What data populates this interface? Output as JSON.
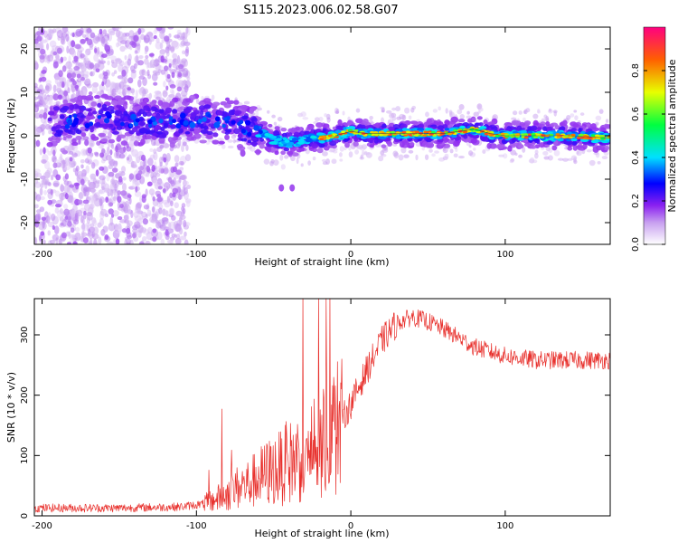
{
  "figure": {
    "title": "S115.2023.006.02.58.G07"
  },
  "chart_data": [
    {
      "type": "heatmap",
      "xlabel": "Height of straight line (km)",
      "ylabel": "Frequency (Hz)",
      "xlim": [
        -205,
        168
      ],
      "ylim": [
        -25,
        25
      ],
      "xticks": [
        -200,
        -100,
        0,
        100
      ],
      "yticks": [
        -20,
        -10,
        0,
        10,
        20
      ],
      "colorbar": {
        "label": "Normalized spectral amplitude",
        "range": [
          0,
          1
        ],
        "ticks": [
          "0.0",
          "0.2",
          "0.4",
          "0.6",
          "0.8"
        ],
        "colormap": [
          "#ffffff",
          "#c8a0f0",
          "#8a20f0",
          "#0000ff",
          "#00e0ff",
          "#00ff40",
          "#e8ff00",
          "#ff6000",
          "#ff0080"
        ]
      },
      "ridge": {
        "height_km": [
          -200,
          -180,
          -160,
          -140,
          -120,
          -100,
          -80,
          -60,
          -50,
          -40,
          -30,
          -20,
          -10,
          0,
          10,
          20,
          40,
          60,
          70,
          80,
          90,
          100,
          120,
          140,
          168
        ],
        "frequency_hz": [
          3,
          3.5,
          4,
          3.5,
          3,
          4,
          3,
          1,
          -1,
          -1.5,
          -1,
          -0.5,
          0,
          1,
          0.5,
          0.5,
          0.5,
          0.5,
          1,
          1.5,
          0.5,
          0,
          0,
          0,
          -0.5
        ]
      },
      "stray_peaks_note_values": {
        "height_km": [
          -45,
          -38,
          -70
        ],
        "frequency_hz": [
          -12,
          -12,
          -4
        ]
      }
    },
    {
      "type": "line",
      "xlabel": "Height of straight line (km)",
      "ylabel": "SNR (10 * v/v)",
      "xlim": [
        -205,
        168
      ],
      "ylim": [
        0,
        360
      ],
      "xticks": [
        -200,
        -100,
        0,
        100
      ],
      "yticks": [
        0,
        100,
        200,
        300
      ],
      "color": "#e8302c",
      "envelope": {
        "x": [
          -205,
          -150,
          -110,
          -95,
          -85,
          -75,
          -65,
          -55,
          -45,
          -35,
          -25,
          -15,
          -8,
          0,
          10,
          20,
          30,
          40,
          50,
          60,
          70,
          80,
          100,
          120,
          140,
          168
        ],
        "y": [
          13,
          13,
          15,
          20,
          30,
          45,
          55,
          70,
          80,
          95,
          110,
          130,
          150,
          185,
          240,
          290,
          320,
          330,
          322,
          310,
          295,
          280,
          265,
          258,
          258,
          258
        ]
      }
    }
  ]
}
